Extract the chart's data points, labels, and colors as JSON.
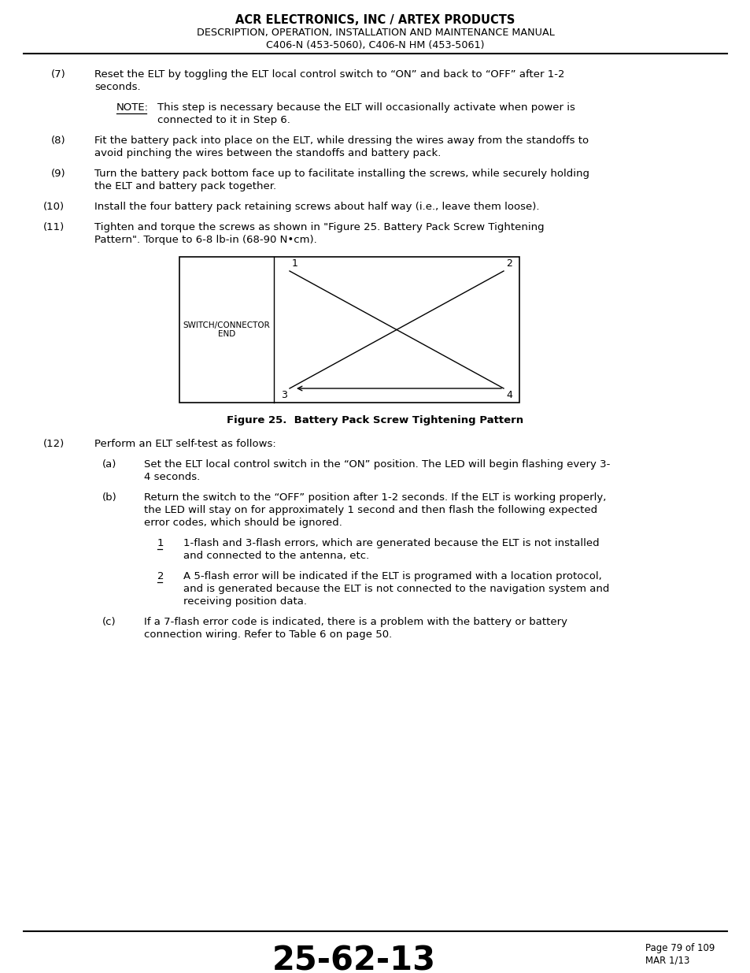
{
  "page_title_line1": "ACR ELECTRONICS, INC / ARTEX PRODUCTS",
  "page_title_line2": "DESCRIPTION, OPERATION, INSTALLATION AND MAINTENANCE MANUAL",
  "page_title_line3": "C406-N (453-5060), C406-N HM (453-5061)",
  "footer_center": "25-62-13",
  "footer_right_line1": "Page 79 of 109",
  "footer_right_line2": "MAR 1/13",
  "figure_caption": "Figure 25.  Battery Pack Screw Tightening Pattern",
  "diagram_label_left": "SWITCH/CONNECTOR\nEND",
  "bg_color": "#ffffff",
  "text_color": "#000000",
  "font_size_body": 9.5
}
